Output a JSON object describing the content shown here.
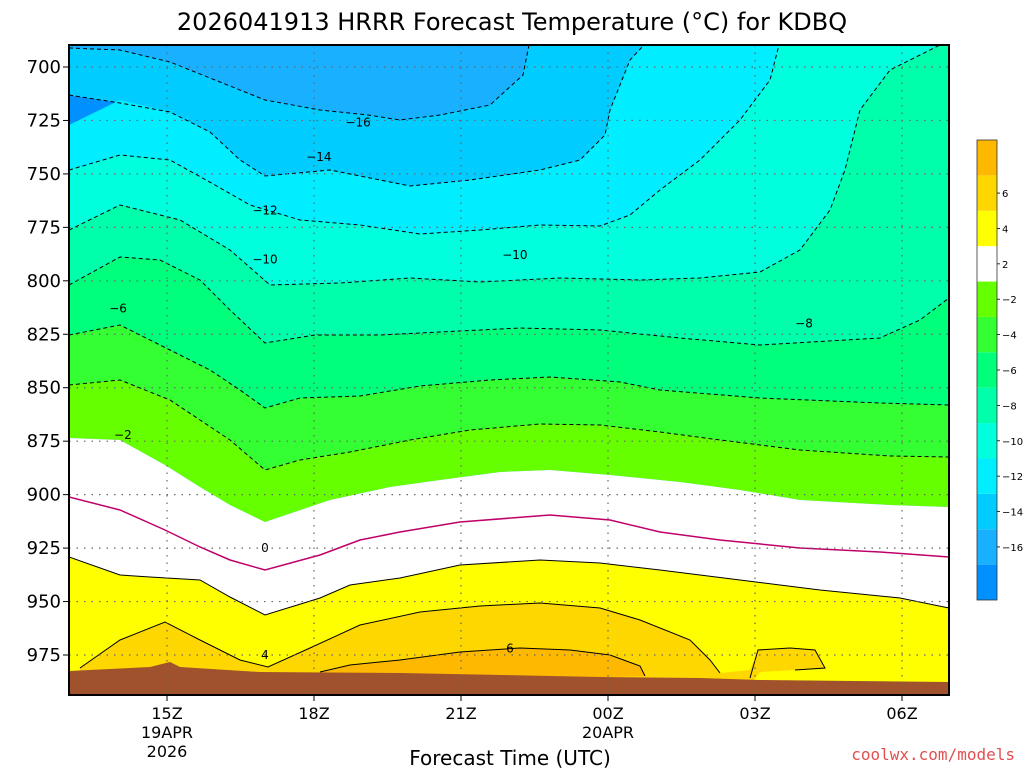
{
  "chart_data": {
    "type": "contour",
    "title": "2026041913 HRRR Forecast Temperature (°C) for KDBQ",
    "xlabel": "Forecast Time (UTC)",
    "ylabel": "",
    "credit": "coolwx.com/models",
    "y_ticks": [
      "700",
      "725",
      "750",
      "775",
      "800",
      "825",
      "850",
      "875",
      "900",
      "925",
      "950",
      "975"
    ],
    "ylim": [
      990,
      690
    ],
    "x_ticks": [
      {
        "hour": 15,
        "label": "15Z",
        "sub1": "19APR",
        "sub2": "2026"
      },
      {
        "hour": 18,
        "label": "18Z",
        "sub1": "",
        "sub2": ""
      },
      {
        "hour": 21,
        "label": "21Z",
        "sub1": "",
        "sub2": ""
      },
      {
        "hour": 24,
        "label": "00Z",
        "sub1": "20APR",
        "sub2": ""
      },
      {
        "hour": 27,
        "label": "03Z",
        "sub1": "",
        "sub2": ""
      },
      {
        "hour": 30,
        "label": "06Z",
        "sub1": "",
        "sub2": ""
      }
    ],
    "xlim": [
      13,
      31
    ],
    "colorbar": {
      "bins": [
        {
          "color": "#0090ff"
        },
        {
          "color": "#19b0ff",
          "label": "-16"
        },
        {
          "color": "#00ccff",
          "label": "-14"
        },
        {
          "color": "#00eeff",
          "label": "-12"
        },
        {
          "color": "#00ffdd",
          "label": "-10"
        },
        {
          "color": "#00ffaa",
          "label": "-8"
        },
        {
          "color": "#00ff7a",
          "label": "-6"
        },
        {
          "color": "#33ff33",
          "label": "-4"
        },
        {
          "color": "#66ff00",
          "label": "-2"
        },
        {
          "color": "#ffffff",
          "label": "2"
        },
        {
          "color": "#ffff00",
          "label": "4"
        },
        {
          "color": "#ffd700",
          "label": "6"
        },
        {
          "color": "#ffb800"
        }
      ]
    },
    "contour_labels": [
      {
        "text": "-16",
        "hour": 18.9,
        "p": 726
      },
      {
        "text": "-14",
        "hour": 18.1,
        "p": 742
      },
      {
        "text": "-12",
        "hour": 17.0,
        "p": 767
      },
      {
        "text": "-10",
        "hour": 17.0,
        "p": 790
      },
      {
        "text": "-10",
        "hour": 22.1,
        "p": 788
      },
      {
        "text": "-8",
        "hour": 28.0,
        "p": 820
      },
      {
        "text": "-6",
        "hour": 14.0,
        "p": 813
      },
      {
        "text": "-2",
        "hour": 14.1,
        "p": 872
      },
      {
        "text": "0",
        "hour": 17.0,
        "p": 925
      },
      {
        "text": "4",
        "hour": 17.0,
        "p": 975
      },
      {
        "text": "6",
        "hour": 22.0,
        "p": 972
      }
    ]
  }
}
